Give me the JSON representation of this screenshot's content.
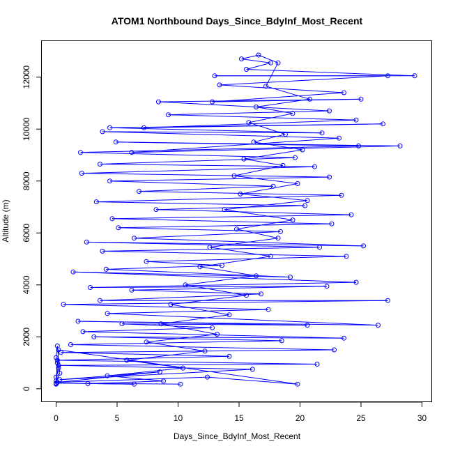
{
  "chart_data": {
    "type": "scatter",
    "title": "ATOM1 Northbound Days_Since_BdyInf_Most_Recent",
    "xlabel": "Days_Since_BdyInf_Most_Recent",
    "ylabel": "Altitude (m)",
    "xlim": [
      -1.2,
      30.8
    ],
    "ylim": [
      -500,
      13400
    ],
    "x_ticks": [
      0,
      5,
      10,
      15,
      20,
      25,
      30
    ],
    "y_ticks": [
      0,
      2000,
      4000,
      6000,
      8000,
      10000,
      12000
    ],
    "x_tick_labels": [
      "0",
      "5",
      "10",
      "15",
      "20",
      "25",
      "30"
    ],
    "y_tick_labels": [
      "0",
      "2000",
      "4000",
      "6000",
      "8000",
      "10000",
      "12000"
    ],
    "series_color": "#0000ff",
    "marker": "open-circle",
    "connected": true,
    "grid": false,
    "series": [
      {
        "points": [
          [
            0.0,
            200
          ],
          [
            0.0,
            450
          ],
          [
            0.2,
            800
          ],
          [
            0.0,
            1200
          ],
          [
            0.1,
            1650
          ],
          [
            0.3,
            600
          ],
          [
            0.0,
            300
          ],
          [
            0.1,
            1000
          ],
          [
            0.0,
            180
          ],
          [
            0.2,
            1500
          ],
          [
            19.8,
            180
          ],
          [
            12.4,
            450
          ],
          [
            0.1,
            250
          ],
          [
            8.5,
            650
          ],
          [
            0.3,
            350
          ],
          [
            16.1,
            750
          ],
          [
            0.2,
            900
          ],
          [
            21.4,
            950
          ],
          [
            0.1,
            1100
          ],
          [
            14.2,
            1250
          ],
          [
            0.4,
            1400
          ],
          [
            22.8,
            1500
          ],
          [
            1.2,
            1700
          ],
          [
            18.5,
            1850
          ],
          [
            3.1,
            2000
          ],
          [
            23.6,
            1950
          ],
          [
            2.2,
            2200
          ],
          [
            12.8,
            2350
          ],
          [
            5.4,
            2500
          ],
          [
            20.6,
            2450
          ],
          [
            1.8,
            2600
          ],
          [
            26.4,
            2450
          ],
          [
            4.2,
            2900
          ],
          [
            17.4,
            3050
          ],
          [
            0.6,
            3250
          ],
          [
            27.2,
            3400
          ],
          [
            3.6,
            3400
          ],
          [
            16.8,
            3650
          ],
          [
            6.2,
            3800
          ],
          [
            22.2,
            3950
          ],
          [
            2.8,
            3900
          ],
          [
            24.6,
            4100
          ],
          [
            1.4,
            4500
          ],
          [
            19.2,
            4300
          ],
          [
            4.1,
            4600
          ],
          [
            13.6,
            4750
          ],
          [
            7.4,
            4900
          ],
          [
            23.8,
            5100
          ],
          [
            3.8,
            5300
          ],
          [
            21.6,
            5450
          ],
          [
            2.5,
            5650
          ],
          [
            25.2,
            5500
          ],
          [
            6.4,
            5800
          ],
          [
            18.4,
            6050
          ],
          [
            5.1,
            6200
          ],
          [
            22.6,
            6350
          ],
          [
            4.6,
            6550
          ],
          [
            24.2,
            6700
          ],
          [
            8.2,
            6900
          ],
          [
            20.4,
            7050
          ],
          [
            3.3,
            7200
          ],
          [
            23.4,
            7450
          ],
          [
            6.8,
            7600
          ],
          [
            17.8,
            7800
          ],
          [
            4.4,
            8000
          ],
          [
            22.4,
            8150
          ],
          [
            2.1,
            8300
          ],
          [
            21.2,
            8550
          ],
          [
            3.6,
            8650
          ],
          [
            19.6,
            8900
          ],
          [
            2.0,
            9100
          ],
          [
            24.8,
            9350
          ],
          [
            4.9,
            9500
          ],
          [
            28.2,
            9350
          ],
          [
            6.2,
            9100
          ],
          [
            23.2,
            9650
          ],
          [
            3.8,
            9900
          ],
          [
            21.8,
            9850
          ],
          [
            4.4,
            10050
          ],
          [
            26.8,
            10200
          ],
          [
            7.2,
            10050
          ],
          [
            24.6,
            10350
          ],
          [
            9.2,
            10550
          ],
          [
            22.4,
            10700
          ],
          [
            8.4,
            11050
          ],
          [
            25.0,
            11150
          ],
          [
            12.8,
            11050
          ],
          [
            23.6,
            11400
          ],
          [
            13.4,
            11700
          ],
          [
            27.2,
            12050
          ],
          [
            13.0,
            12050
          ],
          [
            29.4,
            12050
          ],
          [
            15.6,
            12300
          ],
          [
            17.6,
            12550
          ],
          [
            15.2,
            12700
          ],
          [
            16.6,
            12850
          ],
          [
            18.2,
            12550
          ],
          [
            17.2,
            11650
          ],
          [
            20.8,
            11150
          ],
          [
            16.4,
            10850
          ],
          [
            19.4,
            10600
          ],
          [
            15.8,
            10250
          ],
          [
            18.8,
            9800
          ],
          [
            16.2,
            9500
          ],
          [
            20.2,
            9200
          ],
          [
            15.4,
            8850
          ],
          [
            18.6,
            8600
          ],
          [
            14.6,
            8200
          ],
          [
            19.8,
            7900
          ],
          [
            15.1,
            7500
          ],
          [
            20.6,
            7250
          ],
          [
            13.8,
            6900
          ],
          [
            19.4,
            6500
          ],
          [
            14.8,
            6150
          ],
          [
            18.2,
            5800
          ],
          [
            12.6,
            5450
          ],
          [
            17.6,
            5100
          ],
          [
            11.8,
            4700
          ],
          [
            16.4,
            4350
          ],
          [
            10.6,
            4000
          ],
          [
            15.6,
            3600
          ],
          [
            9.4,
            3250
          ],
          [
            14.2,
            2850
          ],
          [
            8.6,
            2500
          ],
          [
            13.2,
            2100
          ],
          [
            7.4,
            1800
          ],
          [
            12.2,
            1450
          ],
          [
            5.8,
            1100
          ],
          [
            10.4,
            800
          ],
          [
            4.2,
            500
          ],
          [
            8.8,
            300
          ],
          [
            2.6,
            200
          ],
          [
            6.4,
            180
          ],
          [
            0.0,
            220
          ],
          [
            10.2,
            180
          ]
        ]
      }
    ]
  }
}
